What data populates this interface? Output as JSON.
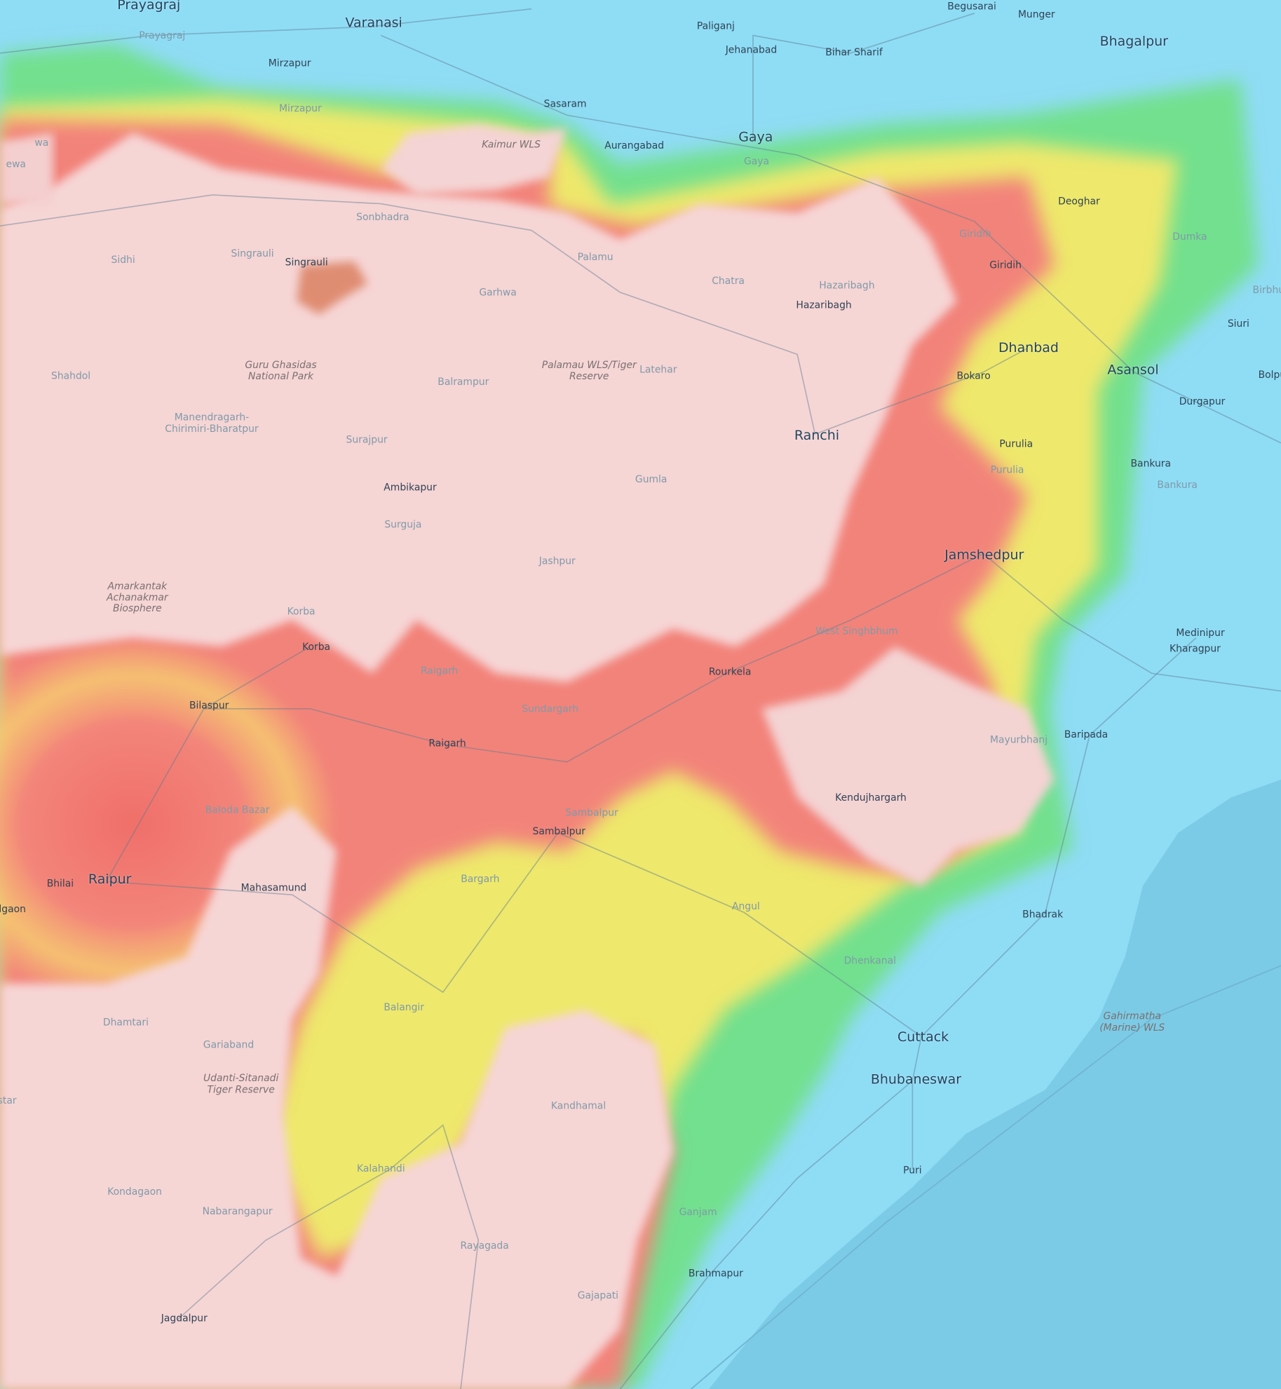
{
  "map": {
    "type": "topographic elevation map",
    "colors": {
      "water_lowland": "#8fdcf5",
      "sea": "#7ccbe6",
      "green": "#6fe08a",
      "yellow": "#f2e96a",
      "red": "#f07a70",
      "plateau": "#f6d6d6"
    },
    "labels": [
      {
        "text": "Prayagraj",
        "style": "major"
      },
      {
        "text": "Varanasi",
        "style": "major"
      },
      {
        "text": "Prayagraj",
        "style": "faint"
      },
      {
        "text": "Mirzapur",
        "style": "city"
      },
      {
        "text": "Paliganj",
        "style": "city"
      },
      {
        "text": "Jehanabad",
        "style": "city"
      },
      {
        "text": "Bihar Sharif",
        "style": "city"
      },
      {
        "text": "Begusarai",
        "style": "city"
      },
      {
        "text": "Munger",
        "style": "city"
      },
      {
        "text": "Bhagalpur",
        "style": "major"
      },
      {
        "text": "Sasaram",
        "style": "city"
      },
      {
        "text": "Aurangabad",
        "style": "city"
      },
      {
        "text": "Gaya",
        "style": "major"
      },
      {
        "text": "Gaya",
        "style": "faint"
      },
      {
        "text": "Mirzapur",
        "style": "faint"
      },
      {
        "text": "Kaimur WLS",
        "style": "park"
      },
      {
        "text": "ewa",
        "style": "faint"
      },
      {
        "text": "wa",
        "style": "faint"
      },
      {
        "text": "Sonbhadra",
        "style": "faint"
      },
      {
        "text": "Singrauli",
        "style": "faint"
      },
      {
        "text": "Singrauli",
        "style": "city"
      },
      {
        "text": "Sidhi",
        "style": "faint"
      },
      {
        "text": "Garhwa",
        "style": "faint"
      },
      {
        "text": "Palamu",
        "style": "faint"
      },
      {
        "text": "Chatra",
        "style": "faint"
      },
      {
        "text": "Hazaribagh",
        "style": "faint"
      },
      {
        "text": "Hazaribagh",
        "style": "city"
      },
      {
        "text": "Giridih",
        "style": "faint"
      },
      {
        "text": "Giridih",
        "style": "city"
      },
      {
        "text": "Deoghar",
        "style": "city"
      },
      {
        "text": "Dumka",
        "style": "faint"
      },
      {
        "text": "Birbhu",
        "style": "faint"
      },
      {
        "text": "Siuri",
        "style": "city"
      },
      {
        "text": "Dhanbad",
        "style": "major"
      },
      {
        "text": "Asansol",
        "style": "major"
      },
      {
        "text": "Bolpu",
        "style": "city"
      },
      {
        "text": "Bokaro",
        "style": "city"
      },
      {
        "text": "Durgapur",
        "style": "city"
      },
      {
        "text": "Latehar",
        "style": "faint"
      },
      {
        "text": "Palamau WLS/Tiger Reserve",
        "style": "park"
      },
      {
        "text": "Guru Ghasidas National Park",
        "style": "park"
      },
      {
        "text": "Shahdol",
        "style": "faint"
      },
      {
        "text": "Balrampur",
        "style": "faint"
      },
      {
        "text": "Ranchi",
        "style": "major"
      },
      {
        "text": "Manendragarh-Chirimiri-Bharatpur",
        "style": "faint"
      },
      {
        "text": "Surajpur",
        "style": "faint"
      },
      {
        "text": "Purulia",
        "style": "city"
      },
      {
        "text": "Purulia",
        "style": "faint"
      },
      {
        "text": "Bankura",
        "style": "city"
      },
      {
        "text": "Bankura",
        "style": "faint"
      },
      {
        "text": "Ambikapur",
        "style": "city"
      },
      {
        "text": "Gumla",
        "style": "faint"
      },
      {
        "text": "Surguja",
        "style": "faint"
      },
      {
        "text": "Jashpur",
        "style": "faint"
      },
      {
        "text": "Jamshedpur",
        "style": "major"
      },
      {
        "text": "Amarkantak Achanakmar Biosphere",
        "style": "park"
      },
      {
        "text": "Korba",
        "style": "faint"
      },
      {
        "text": "Korba",
        "style": "city"
      },
      {
        "text": "West Singhbhum",
        "style": "faint"
      },
      {
        "text": "Medinipur",
        "style": "city"
      },
      {
        "text": "Kharagpur",
        "style": "city"
      },
      {
        "text": "Raigarh",
        "style": "faint"
      },
      {
        "text": "Rourkela",
        "style": "city"
      },
      {
        "text": "Bilaspur",
        "style": "city"
      },
      {
        "text": "Sundargarh",
        "style": "faint"
      },
      {
        "text": "Raigarh",
        "style": "city"
      },
      {
        "text": "Baripada",
        "style": "city"
      },
      {
        "text": "Mayurbhanj",
        "style": "faint"
      },
      {
        "text": "Baloda Bazar",
        "style": "faint"
      },
      {
        "text": "Kendujhargarh",
        "style": "city"
      },
      {
        "text": "Sambalpur",
        "style": "faint"
      },
      {
        "text": "Sambalpur",
        "style": "city"
      },
      {
        "text": "Bhilai",
        "style": "city"
      },
      {
        "text": "Raipur",
        "style": "major"
      },
      {
        "text": "lgaon",
        "style": "city"
      },
      {
        "text": "Mahasamund",
        "style": "city"
      },
      {
        "text": "Bargarh",
        "style": "faint"
      },
      {
        "text": "Angul",
        "style": "faint"
      },
      {
        "text": "Bhadrak",
        "style": "city"
      },
      {
        "text": "Dhenkanal",
        "style": "faint"
      },
      {
        "text": "Gahirmatha (Marine) WLS",
        "style": "park"
      },
      {
        "text": "Dhamtari",
        "style": "faint"
      },
      {
        "text": "Balangir",
        "style": "faint"
      },
      {
        "text": "Gariaband",
        "style": "faint"
      },
      {
        "text": "Udanti-Sitanadi Tiger Reserve",
        "style": "park"
      },
      {
        "text": "Cuttack",
        "style": "major"
      },
      {
        "text": "Bhubaneswar",
        "style": "major"
      },
      {
        "text": "Kandhamal",
        "style": "faint"
      },
      {
        "text": "Kalahandi",
        "style": "faint"
      },
      {
        "text": "Puri",
        "style": "city"
      },
      {
        "text": "Kondagaon",
        "style": "faint"
      },
      {
        "text": "Nabarangapur",
        "style": "faint"
      },
      {
        "text": "Ganjam",
        "style": "faint"
      },
      {
        "text": "Rayagada",
        "style": "faint"
      },
      {
        "text": "Brahmapur",
        "style": "city"
      },
      {
        "text": "Gajapati",
        "style": "faint"
      },
      {
        "text": "Jagdalpur",
        "style": "city"
      },
      {
        "text": "star",
        "style": "faint"
      }
    ]
  }
}
